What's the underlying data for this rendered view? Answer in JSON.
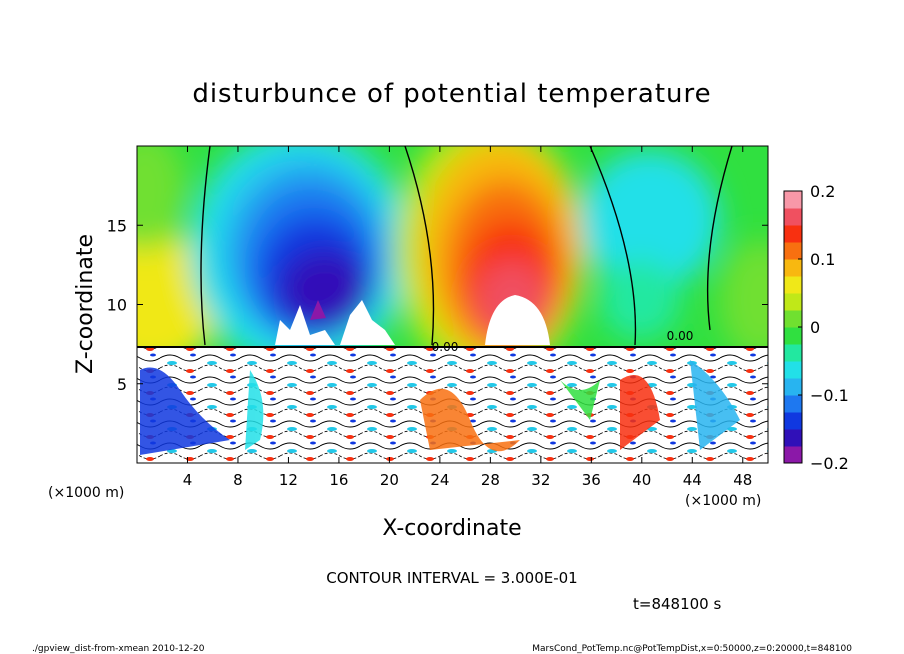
{
  "chart_data": {
    "type": "heatmap",
    "title": "disturbunce of potential temperature",
    "xlabel": "X-coordinate",
    "ylabel": "Z-coordinate",
    "x_unit_left": "(×1000 m)",
    "x_unit_right": "(×1000 m)",
    "xlim": [
      0,
      50
    ],
    "ylim": [
      0,
      20
    ],
    "x_ticks": [
      4,
      8,
      12,
      16,
      20,
      24,
      28,
      32,
      36,
      40,
      44,
      48
    ],
    "y_ticks": [
      5,
      10,
      15
    ],
    "colorbar": {
      "vmin": -0.2,
      "vmax": 0.2,
      "tick_values": [
        0.2,
        0.1,
        0,
        -0.1,
        -0.2
      ],
      "tick_labels": [
        "0.2",
        "0.1",
        "0",
        "−0.1",
        "−0.2"
      ],
      "colors": [
        "#8b18a8",
        "#3010b8",
        "#1038e0",
        "#1e78f0",
        "#28b4f0",
        "#22e0e8",
        "#22e8a0",
        "#30e040",
        "#70e030",
        "#c0e818",
        "#f0e818",
        "#f8b810",
        "#f87010",
        "#f83010",
        "#f05060",
        "#f898a8"
      ]
    },
    "contour_labels": [
      "0.00",
      "0.00"
    ],
    "contour_interval_text": "CONTOUR INTERVAL = 3.000E-01",
    "time_text": "t=848100 s",
    "footer_left": "./gpview_dist-from-xmean  2010-12-20",
    "footer_right": "MarsCond_PotTemp.nc@PotTempDist,x=0:50000,z=0:20000,t=848100",
    "features": [
      {
        "x": 15,
        "z": 13,
        "value": -0.2
      },
      {
        "x": 29,
        "z": 12.5,
        "value": 0.2
      },
      {
        "x": 2,
        "z": 16,
        "value": 0.05
      },
      {
        "x": 45,
        "z": 15,
        "value": 0.0
      },
      {
        "x": 38,
        "z": 16,
        "value": -0.08
      }
    ]
  }
}
